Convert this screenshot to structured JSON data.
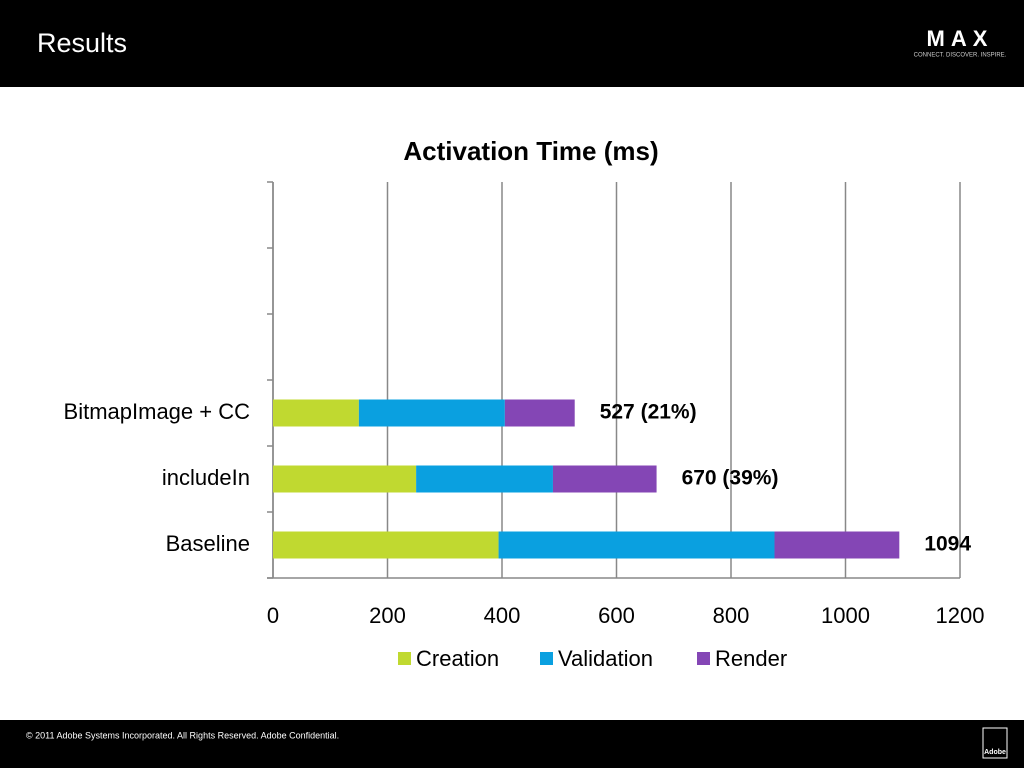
{
  "page": {
    "heading": "Results",
    "logo": "MAX",
    "tagline": "CONNECT. DISCOVER. INSPIRE.",
    "footer": "© 2011 Adobe Systems Incorporated.  All Rights Reserved.  Adobe Confidential.",
    "brand": "Adobe"
  },
  "chart_data": {
    "type": "stacked-barh",
    "title": "Activation Time (ms)",
    "categories": [
      "Baseline",
      "includeIn",
      "BitmapImage + CC",
      null,
      null,
      null
    ],
    "series": [
      {
        "name": "Creation",
        "color": "#c0d930",
        "values": [
          394,
          250,
          150,
          null,
          null,
          null
        ]
      },
      {
        "name": "Validation",
        "color": "#0aa0e0",
        "values": [
          482,
          239,
          255,
          null,
          null,
          null
        ]
      },
      {
        "name": "Render",
        "color": "#8446b5",
        "values": [
          218,
          181,
          122,
          null,
          null,
          null
        ]
      }
    ],
    "totals": [
      1094,
      670,
      527,
      null,
      null,
      null
    ],
    "total_labels": [
      "1094",
      "670 (39%)",
      "527 (21%)",
      null,
      null,
      null
    ],
    "xlim": [
      0,
      1200
    ],
    "xticks": [
      0,
      200,
      400,
      600,
      800,
      1000,
      1200
    ],
    "grid": true,
    "legend": "bottom"
  }
}
